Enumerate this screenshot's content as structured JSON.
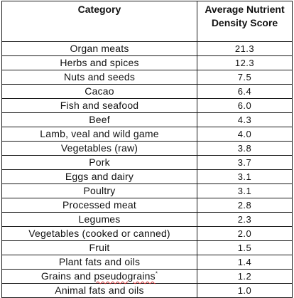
{
  "table": {
    "headers": [
      "Category",
      "Average Nutrient Density Score"
    ],
    "rows": [
      {
        "category": "Organ meats",
        "score": "21.3"
      },
      {
        "category": "Herbs and spices",
        "score": "12.3"
      },
      {
        "category": "Nuts and seeds",
        "score": "7.5"
      },
      {
        "category": "Cacao",
        "score": "6.4"
      },
      {
        "category": "Fish and seafood",
        "score": "6.0"
      },
      {
        "category": "Beef",
        "score": "4.3"
      },
      {
        "category": "Lamb, veal and wild game",
        "score": "4.0"
      },
      {
        "category": "Vegetables (raw)",
        "score": "3.8"
      },
      {
        "category": "Pork",
        "score": "3.7"
      },
      {
        "category": "Eggs and dairy",
        "score": "3.1"
      },
      {
        "category": "Poultry",
        "score": "3.1"
      },
      {
        "category": "Processed meat",
        "score": "2.8"
      },
      {
        "category": "Legumes",
        "score": "2.3"
      },
      {
        "category": "Vegetables (cooked or canned)",
        "score": "2.0"
      },
      {
        "category": "Fruit",
        "score": "1.5"
      },
      {
        "category": "Plant fats and oils",
        "score": "1.4"
      },
      {
        "category": "Grains and pseudograins",
        "score": "1.2",
        "marker": "*"
      },
      {
        "category": "Animal fats and oils",
        "score": "1.0"
      }
    ]
  },
  "colors": {
    "border": "#1a1a1a",
    "text": "#111111",
    "spellcheck_underline": "#d0282b"
  }
}
